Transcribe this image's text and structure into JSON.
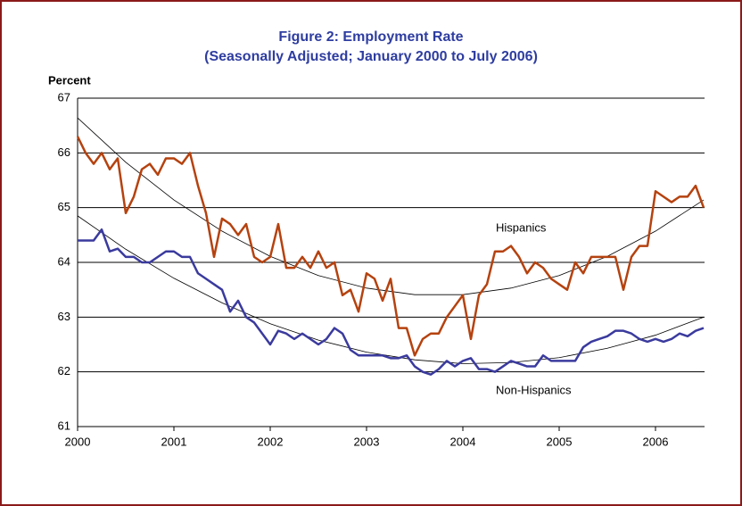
{
  "chart_data": {
    "type": "line",
    "title": "Figure 2: Employment Rate",
    "subtitle": "(Seasonally Adjusted; January 2000 to July 2006)",
    "y_label": "Percent",
    "categories": [
      "2000",
      null,
      null,
      null,
      null,
      null,
      null,
      null,
      null,
      null,
      null,
      null,
      "2001",
      null,
      null,
      null,
      null,
      null,
      null,
      null,
      null,
      null,
      null,
      null,
      "2002",
      null,
      null,
      null,
      null,
      null,
      null,
      null,
      null,
      null,
      null,
      null,
      "2003",
      null,
      null,
      null,
      null,
      null,
      null,
      null,
      null,
      null,
      null,
      null,
      "2004",
      null,
      null,
      null,
      null,
      null,
      null,
      null,
      null,
      null,
      null,
      null,
      "2005",
      null,
      null,
      null,
      null,
      null,
      null,
      null,
      null,
      null,
      null,
      null,
      "2006",
      null,
      null,
      null,
      null,
      null,
      null
    ],
    "series": [
      {
        "name": "Hispanics",
        "color": "#b5420f",
        "values": [
          66.3,
          66.0,
          65.8,
          66.0,
          65.7,
          65.9,
          64.9,
          65.2,
          65.7,
          65.8,
          65.6,
          65.9,
          65.9,
          65.8,
          66.0,
          65.4,
          64.9,
          64.1,
          64.8,
          64.7,
          64.5,
          64.7,
          64.1,
          64.0,
          64.1,
          64.7,
          63.9,
          63.9,
          64.1,
          63.9,
          64.2,
          63.9,
          64.0,
          63.4,
          63.5,
          63.1,
          63.8,
          63.7,
          63.3,
          63.7,
          62.8,
          62.8,
          62.3,
          62.6,
          62.7,
          62.7,
          63.0,
          63.2,
          63.4,
          62.6,
          63.4,
          63.6,
          64.2,
          64.2,
          64.3,
          64.1,
          63.8,
          64.0,
          63.9,
          63.7,
          63.6,
          63.5,
          64.0,
          63.8,
          64.1,
          64.1,
          64.1,
          64.1,
          63.5,
          64.1,
          64.3,
          64.3,
          65.3,
          65.2,
          65.1,
          65.2,
          65.2,
          65.4,
          65.0
        ]
      },
      {
        "name": "Non-Hispanics",
        "color": "#3a3a9e",
        "values": [
          64.4,
          64.4,
          64.4,
          64.6,
          64.2,
          64.25,
          64.1,
          64.1,
          64.0,
          64.0,
          64.1,
          64.2,
          64.2,
          64.1,
          64.1,
          63.8,
          63.7,
          63.6,
          63.5,
          63.1,
          63.3,
          63.0,
          62.9,
          62.7,
          62.5,
          62.75,
          62.7,
          62.6,
          62.7,
          62.6,
          62.5,
          62.6,
          62.8,
          62.7,
          62.4,
          62.3,
          62.3,
          62.3,
          62.3,
          62.25,
          62.25,
          62.3,
          62.1,
          62.0,
          61.95,
          62.05,
          62.2,
          62.1,
          62.2,
          62.25,
          62.05,
          62.05,
          62.0,
          62.1,
          62.2,
          62.15,
          62.1,
          62.1,
          62.3,
          62.2,
          62.2,
          62.2,
          62.2,
          62.45,
          62.55,
          62.6,
          62.65,
          62.75,
          62.75,
          62.7,
          62.6,
          62.55,
          62.6,
          62.55,
          62.6,
          62.7,
          62.65,
          62.75,
          62.8
        ]
      }
    ],
    "trend_lines": [
      {
        "color": "#000000",
        "x": [
          0,
          6,
          12,
          18,
          24,
          30,
          36,
          42,
          48,
          54,
          60,
          66,
          72,
          78
        ],
        "values": [
          66.64,
          65.83,
          65.14,
          64.57,
          64.11,
          63.76,
          63.53,
          63.41,
          63.41,
          63.53,
          63.76,
          64.11,
          64.57,
          65.14
        ]
      },
      {
        "color": "#000000",
        "x": [
          0,
          6,
          12,
          18,
          24,
          30,
          36,
          42,
          48,
          54,
          60,
          66,
          72,
          78
        ],
        "values": [
          64.85,
          64.24,
          63.71,
          63.26,
          62.88,
          62.58,
          62.36,
          62.22,
          62.15,
          62.17,
          62.26,
          62.43,
          62.67,
          63.0
        ]
      }
    ],
    "ylim": [
      61,
      67
    ],
    "yticks": [
      61,
      62,
      63,
      64,
      65,
      66,
      67
    ],
    "grid": true
  }
}
